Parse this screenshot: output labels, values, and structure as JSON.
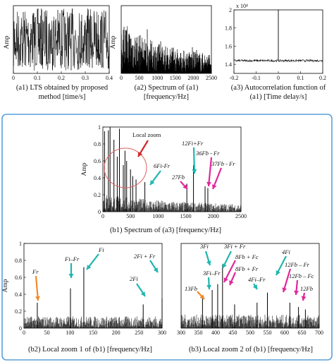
{
  "colors": {
    "panel_border": "#5aa0d8",
    "arrow_teal": "#1fb6b0",
    "arrow_magenta": "#e0289a",
    "arrow_orange": "#f08a2a",
    "arrow_red": "#d0262e",
    "zoom_circle": "#e06060",
    "signal": "#000000"
  },
  "chart_data": [
    {
      "id": "a1",
      "type": "line",
      "caption": "(a1) LTS obtained by proposed method [time/s]",
      "ylabel": "Amp",
      "xlim": [
        0,
        0.4
      ],
      "ylim": [
        -1,
        1
      ],
      "xticks": [
        "0",
        "0.1",
        "0.2",
        "0.3",
        "0.4"
      ],
      "description_values": {
        "signal": "dense random oscillation between -1 and 1"
      }
    },
    {
      "id": "a2",
      "type": "line",
      "caption": "(a2) Spectrum of (a1) [frequency/Hz]",
      "ylabel": "Amp",
      "xlim": [
        0,
        2500
      ],
      "xticks": [
        "0",
        "500",
        "1000",
        "1500",
        "2000",
        "2500"
      ]
    },
    {
      "id": "a3",
      "type": "line",
      "caption": "(a3) Autocorrelation function of (a1) [Time delay/s]",
      "yexponent": "x 10⁴",
      "xlim": [
        -0.2,
        0.2
      ],
      "ylim": [
        1.3,
        2.0
      ],
      "xticks": [
        "-0.2",
        "-0.1",
        "0",
        "0.1",
        "0.2"
      ],
      "yticks": [
        "1.4",
        "1.6",
        "1.8",
        "2"
      ],
      "baseline": 1.44,
      "peak": {
        "x": 0,
        "y": 2.0
      }
    },
    {
      "id": "b1",
      "type": "line",
      "caption": "(b1) Spectrum of (a3) [frequency/Hz]",
      "ylabel": "Amp",
      "xlim": [
        0,
        2500
      ],
      "ylim": [
        0,
        1
      ],
      "xticks": [
        "0",
        "500",
        "1000",
        "1500",
        "2000",
        "2500"
      ],
      "yticks": [
        "0",
        "0.2",
        "0.4",
        "0.6",
        "0.8",
        "1"
      ],
      "peaks": [
        {
          "x": 30,
          "y": 0.95
        },
        {
          "x": 100,
          "y": 0.96
        },
        {
          "x": 130,
          "y": 1.0
        },
        {
          "x": 200,
          "y": 0.85
        },
        {
          "x": 260,
          "y": 0.65
        },
        {
          "x": 300,
          "y": 0.98
        },
        {
          "x": 370,
          "y": 0.55
        },
        {
          "x": 400,
          "y": 0.72
        },
        {
          "x": 430,
          "y": 0.6
        },
        {
          "x": 500,
          "y": 0.5
        },
        {
          "x": 540,
          "y": 0.42
        },
        {
          "x": 600,
          "y": 0.38
        },
        {
          "x": 760,
          "y": 0.35
        },
        {
          "x": 1520,
          "y": 0.33
        },
        {
          "x": 1640,
          "y": 0.55
        },
        {
          "x": 1850,
          "y": 0.3
        },
        {
          "x": 1900,
          "y": 0.28
        }
      ],
      "annotations": [
        {
          "label": "Local zoom",
          "color": "arrow_red"
        },
        {
          "label": "12Fi+Fr",
          "x": 1640,
          "color": "arrow_teal"
        },
        {
          "label": "6Fi-Fr",
          "x": 760,
          "color": "arrow_teal"
        },
        {
          "label": "36Fb - Fr",
          "x": 1850,
          "color": "arrow_magenta"
        },
        {
          "label": "37Fb - Fr",
          "x": 1900,
          "color": "arrow_magenta"
        },
        {
          "label": "27Fb",
          "x": 1520,
          "color": "arrow_magenta"
        }
      ]
    },
    {
      "id": "b2",
      "type": "line",
      "caption": "(b2) Local zoom 1 of (b1) [frequency/Hz]",
      "ylabel": "Amp",
      "xlim": [
        0,
        300
      ],
      "ylim": [
        0,
        1
      ],
      "xticks": [
        "0",
        "50",
        "100",
        "150",
        "200",
        "250",
        "300"
      ],
      "yticks": [
        "0",
        "0.2",
        "0.4",
        "0.6",
        "0.8",
        "1"
      ],
      "peaks": [
        {
          "x": 29,
          "y": 0.3
        },
        {
          "x": 101,
          "y": 0.47
        },
        {
          "x": 130,
          "y": 0.72
        },
        {
          "x": 259,
          "y": 0.28
        },
        {
          "x": 300,
          "y": 0.35
        }
      ],
      "annotations": [
        {
          "label": "Fr",
          "x": 29,
          "color": "arrow_orange"
        },
        {
          "label": "Fi–Fr",
          "x": 101,
          "color": "arrow_teal"
        },
        {
          "label": "Fi",
          "x": 130,
          "color": "arrow_teal"
        },
        {
          "label": "2Fi + Fr",
          "x": 300,
          "color": "arrow_teal"
        },
        {
          "label": "2Fi",
          "x": 259,
          "color": "arrow_teal"
        }
      ]
    },
    {
      "id": "b3",
      "type": "line",
      "caption": "(b3) Local zoom 2 of (b1) [frequency/Hz]",
      "xlim": [
        300,
        700
      ],
      "ylim": [
        0,
        1
      ],
      "xticks": [
        "300",
        "350",
        "400",
        "450",
        "500",
        "550",
        "600",
        "650",
        "700"
      ],
      "peaks": [
        {
          "x": 362,
          "y": 0.38
        },
        {
          "x": 390,
          "y": 0.45
        },
        {
          "x": 406,
          "y": 0.52
        },
        {
          "x": 420,
          "y": 0.75
        },
        {
          "x": 455,
          "y": 0.28
        },
        {
          "x": 520,
          "y": 0.3
        },
        {
          "x": 550,
          "y": 0.42
        },
        {
          "x": 615,
          "y": 0.3
        },
        {
          "x": 640,
          "y": 0.25
        },
        {
          "x": 660,
          "y": 0.22
        }
      ],
      "annotations": [
        {
          "label": "3Fi",
          "x": 406,
          "color": "arrow_teal"
        },
        {
          "label": "3Fi + Fr",
          "x": 420,
          "color": "arrow_teal"
        },
        {
          "label": "3Fi–Fr",
          "x": 390,
          "color": "arrow_teal"
        },
        {
          "label": "13Fb",
          "x": 362,
          "color": "arrow_orange"
        },
        {
          "label": "8Fb + Fc",
          "x": 455,
          "color": "arrow_magenta"
        },
        {
          "label": "8Fb + Fr",
          "x": 455,
          "color": "arrow_magenta"
        },
        {
          "label": "4Fi",
          "x": 550,
          "color": "arrow_teal"
        },
        {
          "label": "4Fi–Fr",
          "x": 520,
          "color": "arrow_teal"
        },
        {
          "label": "12Fb – Fr",
          "x": 615,
          "color": "arrow_magenta"
        },
        {
          "label": "12Fb – Fc",
          "x": 640,
          "color": "arrow_magenta"
        },
        {
          "label": "12Fb",
          "x": 660,
          "color": "arrow_magenta"
        }
      ]
    }
  ],
  "captions": {
    "a1_line1": "(a1) LTS obtained by proposed",
    "a1_line2": "method [time/s]",
    "a2_line1": "(a2) Spectrum of (a1)",
    "a2_line2": "[frequency/Hz]",
    "a3_line1": "(a3) Autocorrelation function of",
    "a3_line2": "(a1) [Time delay/s]",
    "b1": "(b1) Spectrum of (a3) [frequency/Hz]",
    "b2": "(b2) Local zoom 1 of (b1) [frequency/Hz]",
    "b3": "(b3) Local zoom 2 of (b1) [frequency/Hz]"
  },
  "labels": {
    "amp": "Amp",
    "a3_exp": "x 10⁴",
    "local_zoom": "Local zoom"
  }
}
